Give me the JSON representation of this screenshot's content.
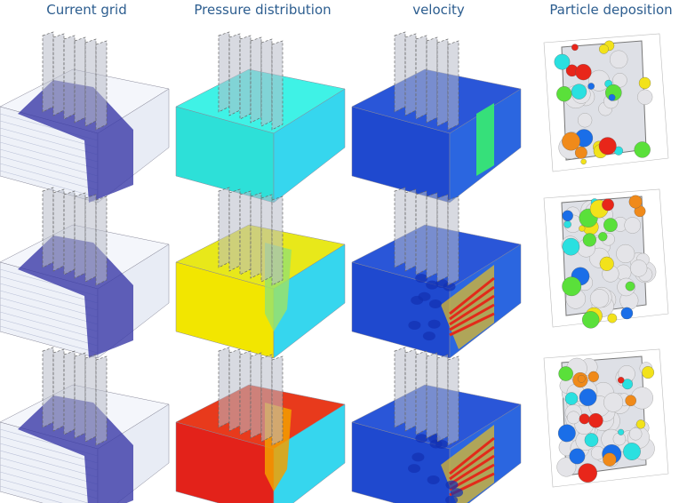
{
  "columns": [
    "Current grid",
    "Pressure distribution",
    "velocity",
    "Particle deposition"
  ]
}
